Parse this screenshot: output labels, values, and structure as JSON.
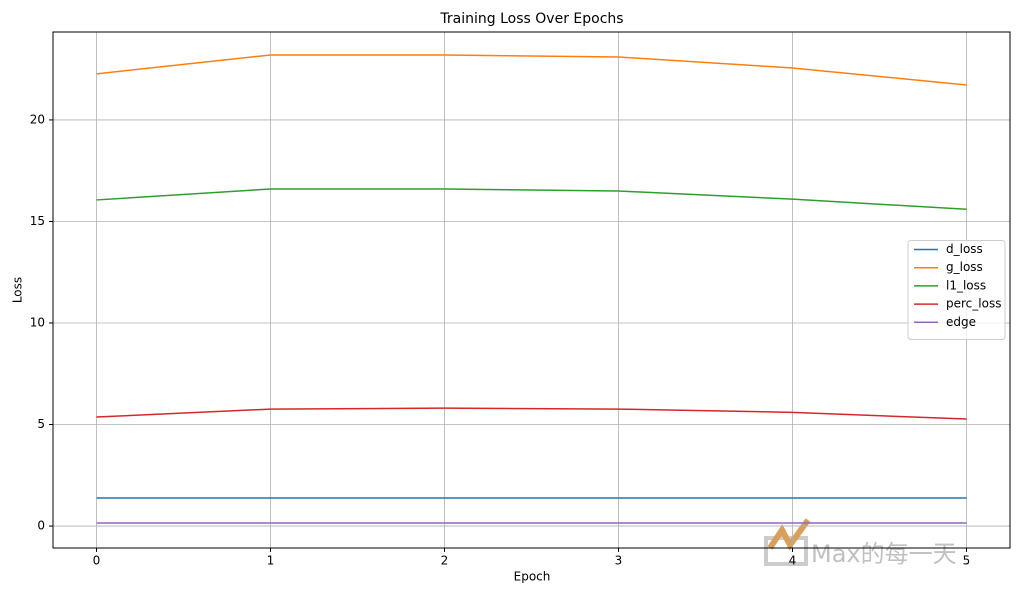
{
  "chart_data": {
    "type": "line",
    "title": "Training Loss Over Epochs",
    "xlabel": "Epoch",
    "ylabel": "Loss",
    "x": [
      0,
      1,
      2,
      3,
      4,
      5
    ],
    "series": [
      {
        "name": "d_loss",
        "color": "#1f77b4",
        "values": [
          1.38,
          1.38,
          1.38,
          1.38,
          1.38,
          1.38
        ]
      },
      {
        "name": "g_loss",
        "color": "#ff7f0e",
        "values": [
          22.27,
          23.2,
          23.2,
          23.1,
          22.56,
          21.72
        ]
      },
      {
        "name": "l1_loss",
        "color": "#2ca02c",
        "values": [
          16.06,
          16.6,
          16.6,
          16.5,
          16.1,
          15.6
        ]
      },
      {
        "name": "perc_loss",
        "color": "#d62728",
        "values": [
          5.37,
          5.76,
          5.81,
          5.76,
          5.6,
          5.27
        ]
      },
      {
        "name": "edge",
        "color": "#9467bd",
        "values": [
          0.15,
          0.15,
          0.15,
          0.15,
          0.15,
          0.15
        ]
      }
    ],
    "xlim": [
      -0.25,
      5.25
    ],
    "ylim": [
      -1.08,
      24.33
    ],
    "xticks": [
      0,
      1,
      2,
      3,
      4,
      5
    ],
    "yticks": [
      0,
      5,
      10,
      15,
      20
    ],
    "grid": true,
    "legend": "center right",
    "watermark": "Max的每一天"
  }
}
